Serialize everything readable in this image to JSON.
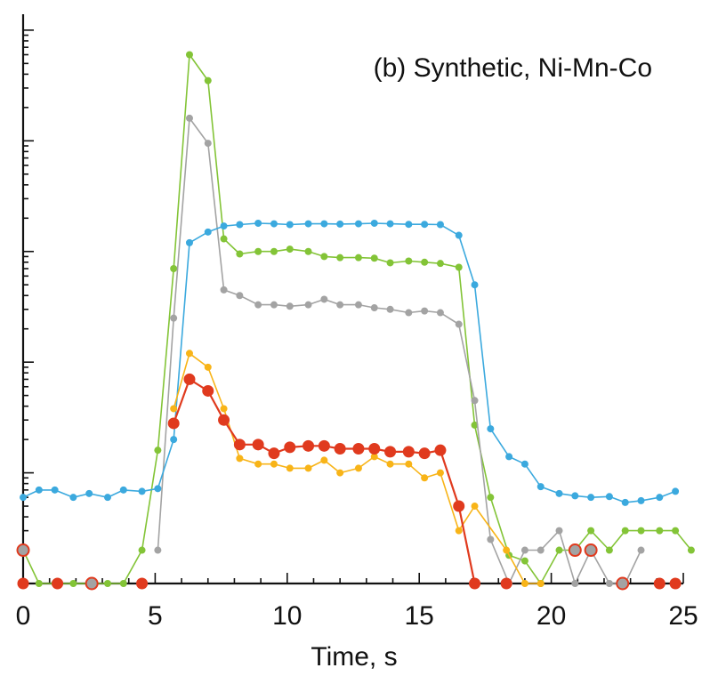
{
  "chart_data": {
    "type": "line",
    "title": "(b) Synthetic, Ni-Mn-Co",
    "xlabel": "Time, s",
    "ylabel": "",
    "xlim": [
      0,
      25
    ],
    "x_ticks": [
      0,
      5,
      10,
      15,
      20,
      25
    ],
    "y_scale": "log",
    "ylim": [
      1,
      300000
    ],
    "y_tick_labels_shown": false,
    "grid": false,
    "legend": "none",
    "series": [
      {
        "color": "#83c437",
        "marker": "small-dot",
        "points": [
          [
            0,
            2
          ],
          [
            0.6,
            1
          ],
          [
            1.2,
            1
          ],
          [
            1.9,
            1
          ],
          [
            2.5,
            1
          ],
          [
            3.2,
            1
          ],
          [
            3.8,
            1
          ],
          [
            4.5,
            2
          ],
          [
            5.1,
            16
          ],
          [
            5.7,
            700
          ],
          [
            6.3,
            60000
          ],
          [
            7.0,
            35000
          ],
          [
            7.6,
            1300
          ],
          [
            8.2,
            950
          ],
          [
            8.9,
            1000
          ],
          [
            9.5,
            1000
          ],
          [
            10.1,
            1050
          ],
          [
            10.8,
            1000
          ],
          [
            11.4,
            900
          ],
          [
            12.0,
            880
          ],
          [
            12.7,
            880
          ],
          [
            13.3,
            870
          ],
          [
            13.9,
            790
          ],
          [
            14.6,
            820
          ],
          [
            15.2,
            800
          ],
          [
            15.8,
            780
          ],
          [
            16.5,
            720
          ],
          [
            17.1,
            27
          ],
          [
            17.7,
            6
          ],
          [
            18.4,
            1.8
          ],
          [
            19.0,
            1.6
          ],
          [
            19.6,
            0.2
          ],
          [
            20.3,
            2
          ],
          [
            20.9,
            2
          ],
          [
            21.5,
            3
          ],
          [
            22.2,
            2
          ],
          [
            22.8,
            3
          ],
          [
            23.4,
            3
          ],
          [
            24.1,
            3
          ],
          [
            24.7,
            3
          ],
          [
            25.3,
            2
          ]
        ]
      },
      {
        "color": "#a3a3a3",
        "marker": "small-dot",
        "points": [
          [
            5.1,
            2
          ],
          [
            5.7,
            250
          ],
          [
            6.3,
            16000
          ],
          [
            7.0,
            9500
          ],
          [
            7.6,
            450
          ],
          [
            8.2,
            400
          ],
          [
            8.9,
            330
          ],
          [
            9.5,
            330
          ],
          [
            10.1,
            320
          ],
          [
            10.8,
            330
          ],
          [
            11.4,
            370
          ],
          [
            12.0,
            330
          ],
          [
            12.7,
            330
          ],
          [
            13.3,
            310
          ],
          [
            13.9,
            300
          ],
          [
            14.6,
            280
          ],
          [
            15.2,
            290
          ],
          [
            15.8,
            280
          ],
          [
            16.5,
            220
          ],
          [
            17.1,
            45
          ],
          [
            17.7,
            2.5
          ],
          [
            18.4,
            0.8
          ],
          [
            19.0,
            2
          ],
          [
            19.6,
            2
          ],
          [
            20.3,
            3
          ],
          [
            20.9,
            1
          ],
          [
            21.5,
            2
          ],
          [
            22.2,
            1
          ],
          [
            22.8,
            1
          ],
          [
            23.4,
            2
          ]
        ]
      },
      {
        "color": "#3ba9de",
        "marker": "small-dot",
        "points": [
          [
            0,
            6
          ],
          [
            0.6,
            7
          ],
          [
            1.2,
            7
          ],
          [
            1.9,
            6
          ],
          [
            2.5,
            6.5
          ],
          [
            3.2,
            6
          ],
          [
            3.8,
            7
          ],
          [
            4.5,
            6.8
          ],
          [
            5.1,
            7.2
          ],
          [
            5.7,
            20
          ],
          [
            6.3,
            1200
          ],
          [
            7.0,
            1500
          ],
          [
            7.6,
            1700
          ],
          [
            8.2,
            1750
          ],
          [
            8.9,
            1800
          ],
          [
            9.5,
            1780
          ],
          [
            10.1,
            1750
          ],
          [
            10.8,
            1780
          ],
          [
            11.4,
            1780
          ],
          [
            12.0,
            1770
          ],
          [
            12.7,
            1780
          ],
          [
            13.3,
            1800
          ],
          [
            13.9,
            1780
          ],
          [
            14.6,
            1760
          ],
          [
            15.2,
            1760
          ],
          [
            15.8,
            1750
          ],
          [
            16.5,
            1400
          ],
          [
            17.1,
            500
          ],
          [
            17.7,
            25
          ],
          [
            18.4,
            14
          ],
          [
            19.0,
            12
          ],
          [
            19.6,
            7.5
          ],
          [
            20.3,
            6.5
          ],
          [
            20.9,
            6.2
          ],
          [
            21.5,
            6
          ],
          [
            22.2,
            6.1
          ],
          [
            22.8,
            5.4
          ],
          [
            23.4,
            5.6
          ],
          [
            24.1,
            6
          ],
          [
            24.7,
            6.8
          ]
        ]
      },
      {
        "color": "#f8b418",
        "marker": "small-dot",
        "points": [
          [
            5.7,
            38
          ],
          [
            6.3,
            120
          ],
          [
            7.0,
            90
          ],
          [
            7.6,
            38
          ],
          [
            8.2,
            13.5
          ],
          [
            8.9,
            12
          ],
          [
            9.5,
            12
          ],
          [
            10.1,
            11
          ],
          [
            10.8,
            11
          ],
          [
            11.4,
            13
          ],
          [
            12.0,
            10
          ],
          [
            12.7,
            11
          ],
          [
            13.3,
            14
          ],
          [
            13.9,
            12
          ],
          [
            14.6,
            12
          ],
          [
            15.2,
            9
          ],
          [
            15.8,
            10
          ],
          [
            16.5,
            3
          ],
          [
            17.1,
            5
          ],
          [
            18.3,
            2
          ],
          [
            19.0,
            1
          ],
          [
            19.6,
            0.2
          ]
        ]
      },
      {
        "color": "#e03a1e",
        "marker": "large-dot",
        "points": [
          [
            5.7,
            28
          ],
          [
            6.3,
            70
          ],
          [
            7.0,
            55
          ],
          [
            7.6,
            30
          ],
          [
            8.2,
            18
          ],
          [
            8.9,
            18
          ],
          [
            9.5,
            15
          ],
          [
            10.1,
            17
          ],
          [
            10.8,
            17.5
          ],
          [
            11.4,
            17.5
          ],
          [
            12.0,
            16.5
          ],
          [
            12.7,
            16.5
          ],
          [
            13.3,
            16.5
          ],
          [
            13.9,
            15.5
          ],
          [
            14.6,
            15.5
          ],
          [
            15.2,
            15
          ],
          [
            15.8,
            16
          ],
          [
            16.5,
            5
          ],
          [
            17.1,
            1
          ]
        ]
      },
      {
        "color": "#e03a1e",
        "marker": "large-dot-scatter",
        "points": [
          [
            0,
            1
          ],
          [
            1.3,
            1
          ],
          [
            2.6,
            1
          ],
          [
            4.5,
            1
          ],
          [
            18.3,
            1
          ],
          [
            24.1,
            1
          ],
          [
            24.7,
            1
          ]
        ]
      },
      {
        "color": "#e03a1e",
        "marker": "open-circle",
        "points": [
          [
            0,
            2
          ],
          [
            2.6,
            1
          ],
          [
            20.9,
            2
          ],
          [
            21.5,
            2
          ],
          [
            22.7,
            1
          ]
        ]
      }
    ]
  }
}
